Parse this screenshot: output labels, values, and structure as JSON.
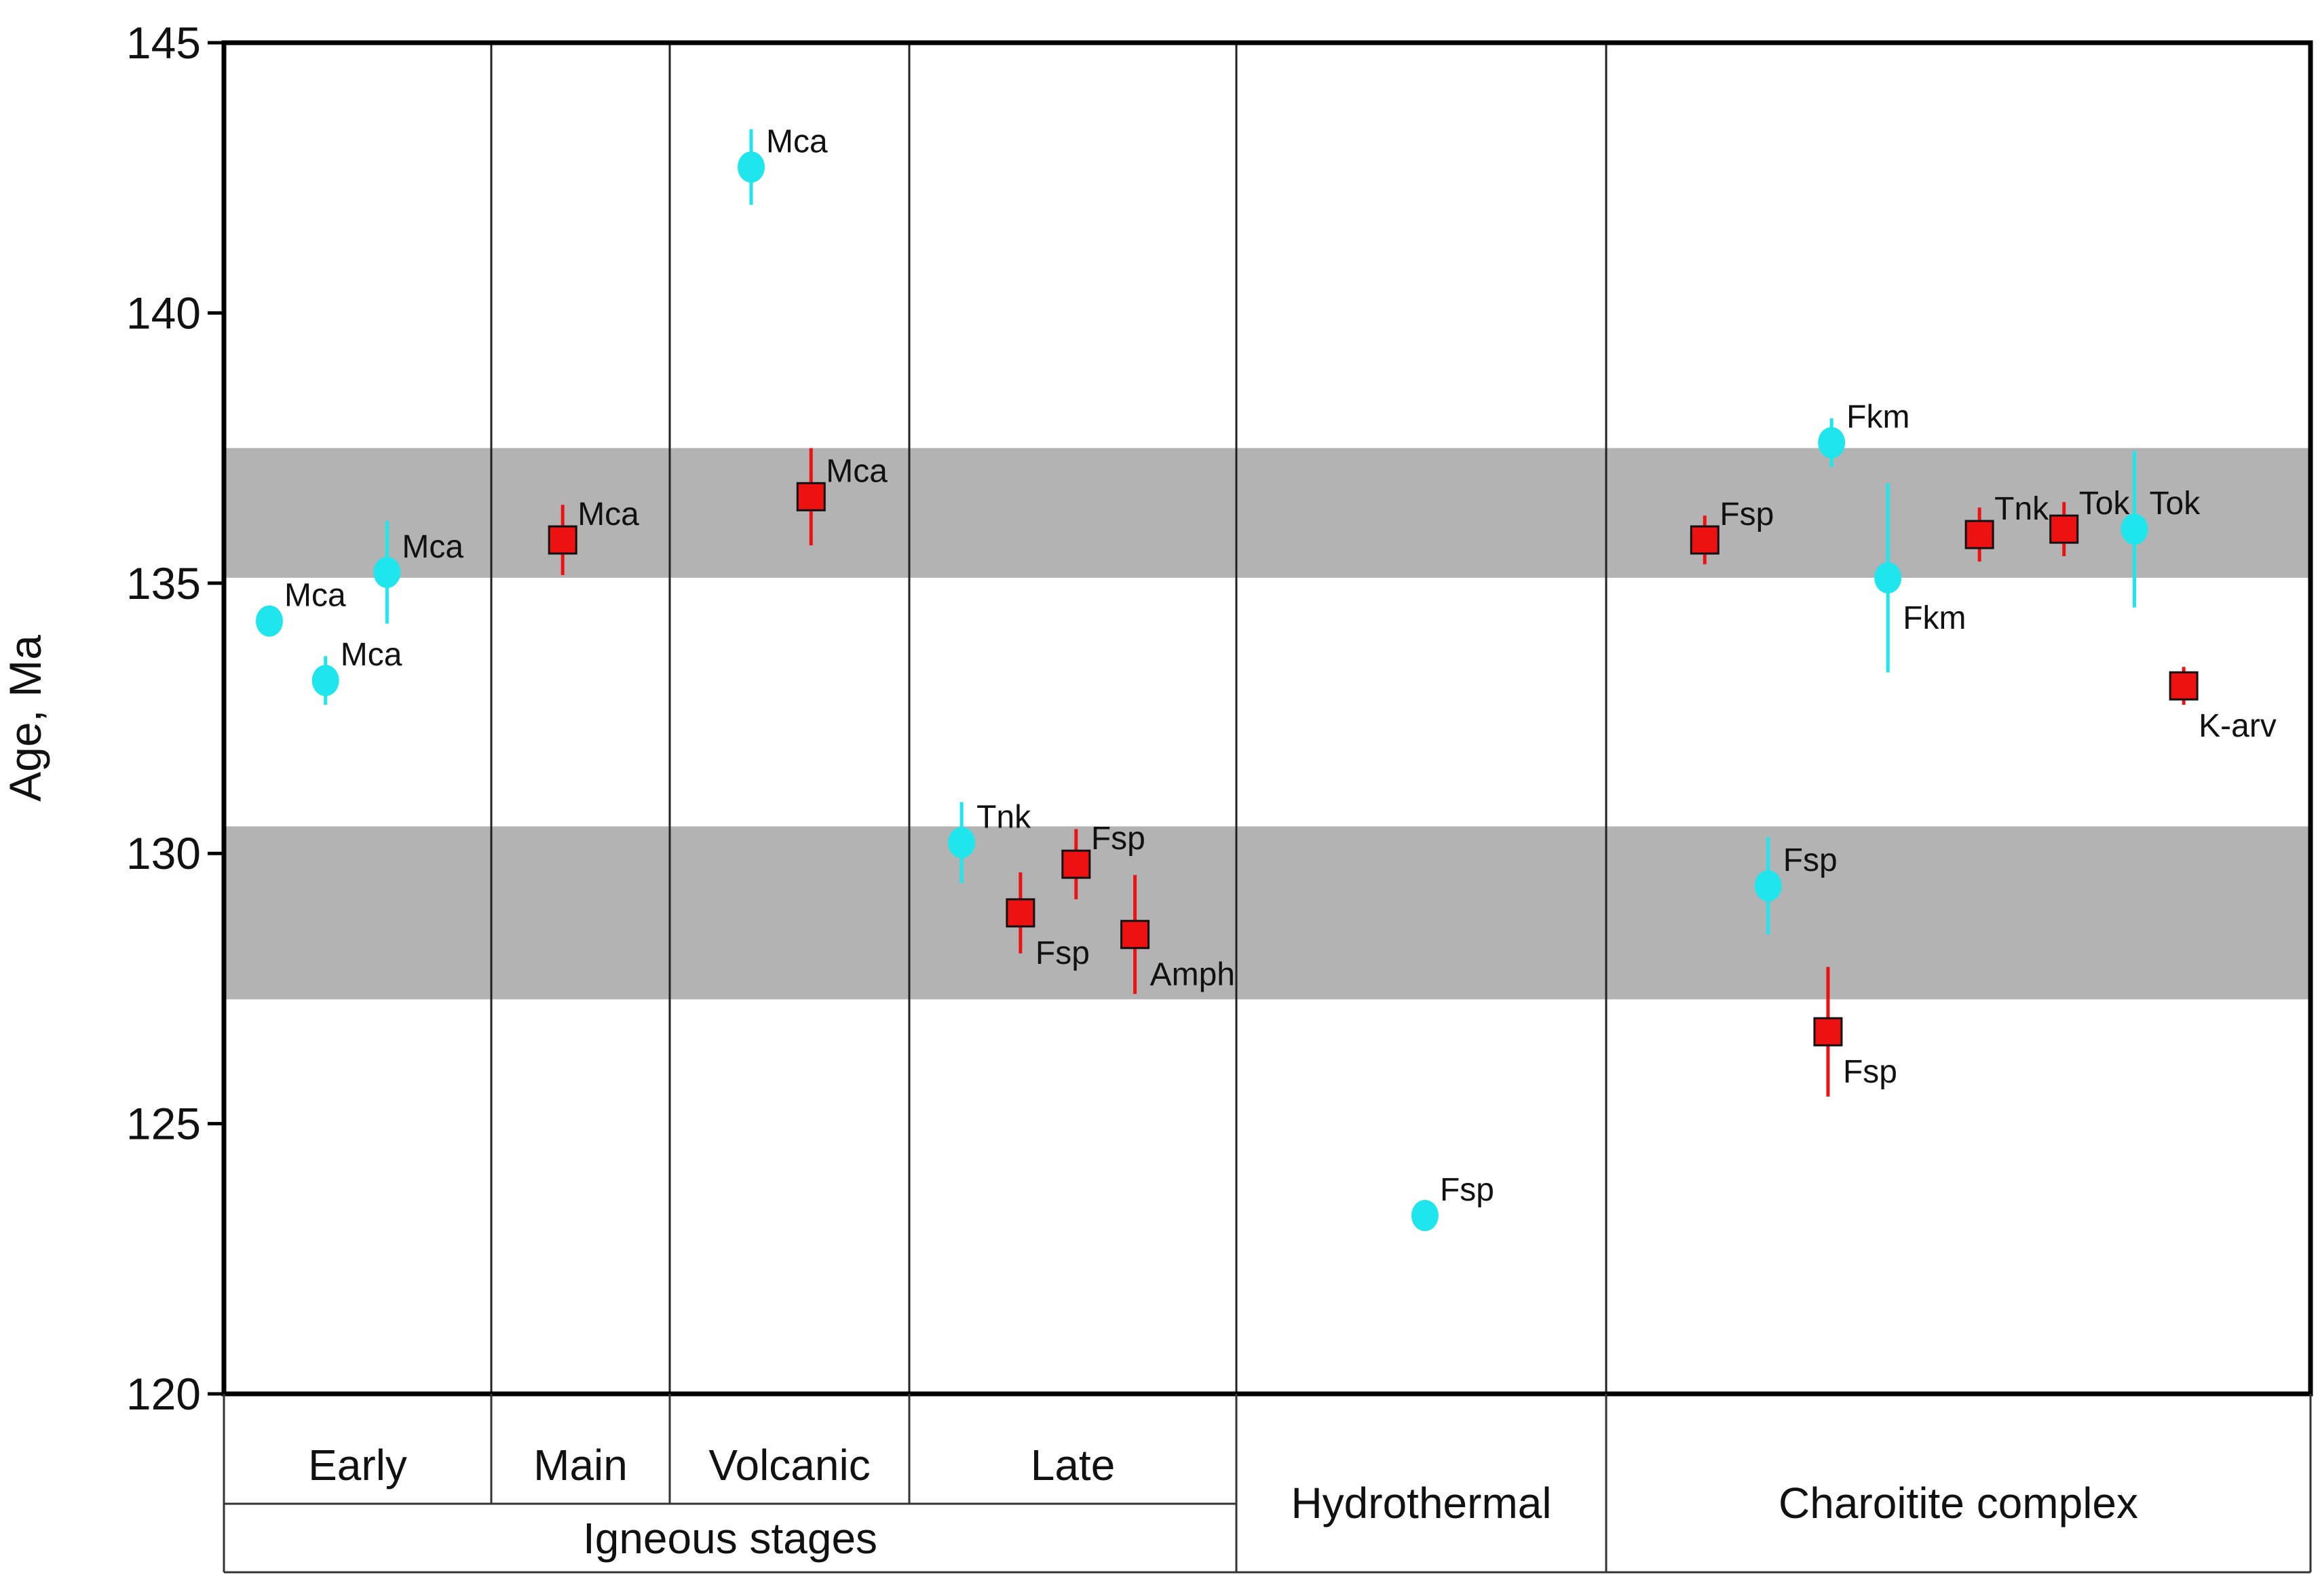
{
  "chart_data": {
    "type": "scatter",
    "title": "",
    "xlabel": "",
    "ylabel": "Age, Ma",
    "ylim": [
      120,
      145
    ],
    "yticks": [
      120,
      125,
      130,
      135,
      140,
      145
    ],
    "y_tick_labels": [
      "120",
      "125",
      "130",
      "135",
      "140",
      "145"
    ],
    "grid": false,
    "bands": [
      {
        "from": 135.1,
        "to": 137.5,
        "color": "#b3b3b3"
      },
      {
        "from": 127.3,
        "to": 130.5,
        "color": "#b3b3b3"
      }
    ],
    "stages": [
      {
        "name": "Early",
        "group": "Igneous stages"
      },
      {
        "name": "Main",
        "group": "Igneous stages"
      },
      {
        "name": "Volcanic",
        "group": "Igneous stages"
      },
      {
        "name": "Late",
        "group": "Igneous stages"
      },
      {
        "name": "Hydrothermal",
        "group": ""
      },
      {
        "name": "Charoitite complex",
        "group": ""
      }
    ],
    "group_label": "Igneous stages",
    "series": [
      {
        "name": "circle",
        "marker": "circle",
        "color": "#1fe5ec",
        "points": [
          {
            "stage": "Early",
            "slot": 0.17,
            "y": 134.3,
            "err": 0.2,
            "label": "Mca",
            "label_pos": "upper-right"
          },
          {
            "stage": "Early",
            "slot": 0.38,
            "y": 133.2,
            "err": 0.45,
            "label": "Mca",
            "label_pos": "upper-right"
          },
          {
            "stage": "Early",
            "slot": 0.61,
            "y": 135.2,
            "err": 0.95,
            "label": "Mca",
            "label_pos": "upper-right"
          },
          {
            "stage": "Volcanic",
            "slot": 0.34,
            "y": 142.7,
            "err": 0.7,
            "label": "Mca",
            "label_pos": "upper-right"
          },
          {
            "stage": "Late",
            "slot": 0.16,
            "y": 130.2,
            "err": 0.75,
            "label": "Tnk",
            "label_pos": "upper-right"
          },
          {
            "stage": "Hydrothermal",
            "slot": 0.51,
            "y": 123.3,
            "err": 0.15,
            "label": "Fsp",
            "label_pos": "upper-right"
          },
          {
            "stage": "Charoitite complex",
            "slot": 0.23,
            "y": 129.4,
            "err": 0.9,
            "label": "Fsp",
            "label_pos": "upper-right"
          },
          {
            "stage": "Charoitite complex",
            "slot": 0.32,
            "y": 137.6,
            "err": 0.45,
            "label": "Fkm",
            "label_pos": "upper-right"
          },
          {
            "stage": "Charoitite complex",
            "slot": 0.4,
            "y": 135.1,
            "err": 1.75,
            "label": "Fkm",
            "label_pos": "lower-right"
          },
          {
            "stage": "Charoitite complex",
            "slot": 0.75,
            "y": 136.0,
            "err": 1.45,
            "label": "Tok",
            "label_pos": "upper-right"
          }
        ]
      },
      {
        "name": "square",
        "marker": "square",
        "color": "#ee1111",
        "points": [
          {
            "stage": "Main",
            "slot": 0.4,
            "y": 135.8,
            "err": 0.65,
            "label": "Mca",
            "label_pos": "upper-right"
          },
          {
            "stage": "Volcanic",
            "slot": 0.59,
            "y": 136.6,
            "err": 0.9,
            "label": "Mca",
            "label_pos": "upper-right"
          },
          {
            "stage": "Late",
            "slot": 0.34,
            "y": 128.9,
            "err": 0.75,
            "label": "Fsp",
            "label_pos": "lower-right"
          },
          {
            "stage": "Late",
            "slot": 0.51,
            "y": 129.8,
            "err": 0.65,
            "label": "Fsp",
            "label_pos": "upper-right"
          },
          {
            "stage": "Late",
            "slot": 0.69,
            "y": 128.5,
            "err": 1.1,
            "label": "Amph",
            "label_pos": "lower-right"
          },
          {
            "stage": "Charoitite complex",
            "slot": 0.14,
            "y": 135.8,
            "err": 0.45,
            "label": "Fsp",
            "label_pos": "upper-right"
          },
          {
            "stage": "Charoitite complex",
            "slot": 0.315,
            "y": 126.7,
            "err": 1.2,
            "label": "Fsp",
            "label_pos": "lower-right"
          },
          {
            "stage": "Charoitite complex",
            "slot": 0.53,
            "y": 135.9,
            "err": 0.5,
            "label": "Tnk",
            "label_pos": "upper-right"
          },
          {
            "stage": "Charoitite complex",
            "slot": 0.65,
            "y": 136.0,
            "err": 0.5,
            "label": "Tok",
            "label_pos": "upper-right"
          },
          {
            "stage": "Charoitite complex",
            "slot": 0.82,
            "y": 133.1,
            "err": 0.35,
            "label": "K-arv",
            "label_pos": "lower-right"
          }
        ]
      }
    ]
  }
}
